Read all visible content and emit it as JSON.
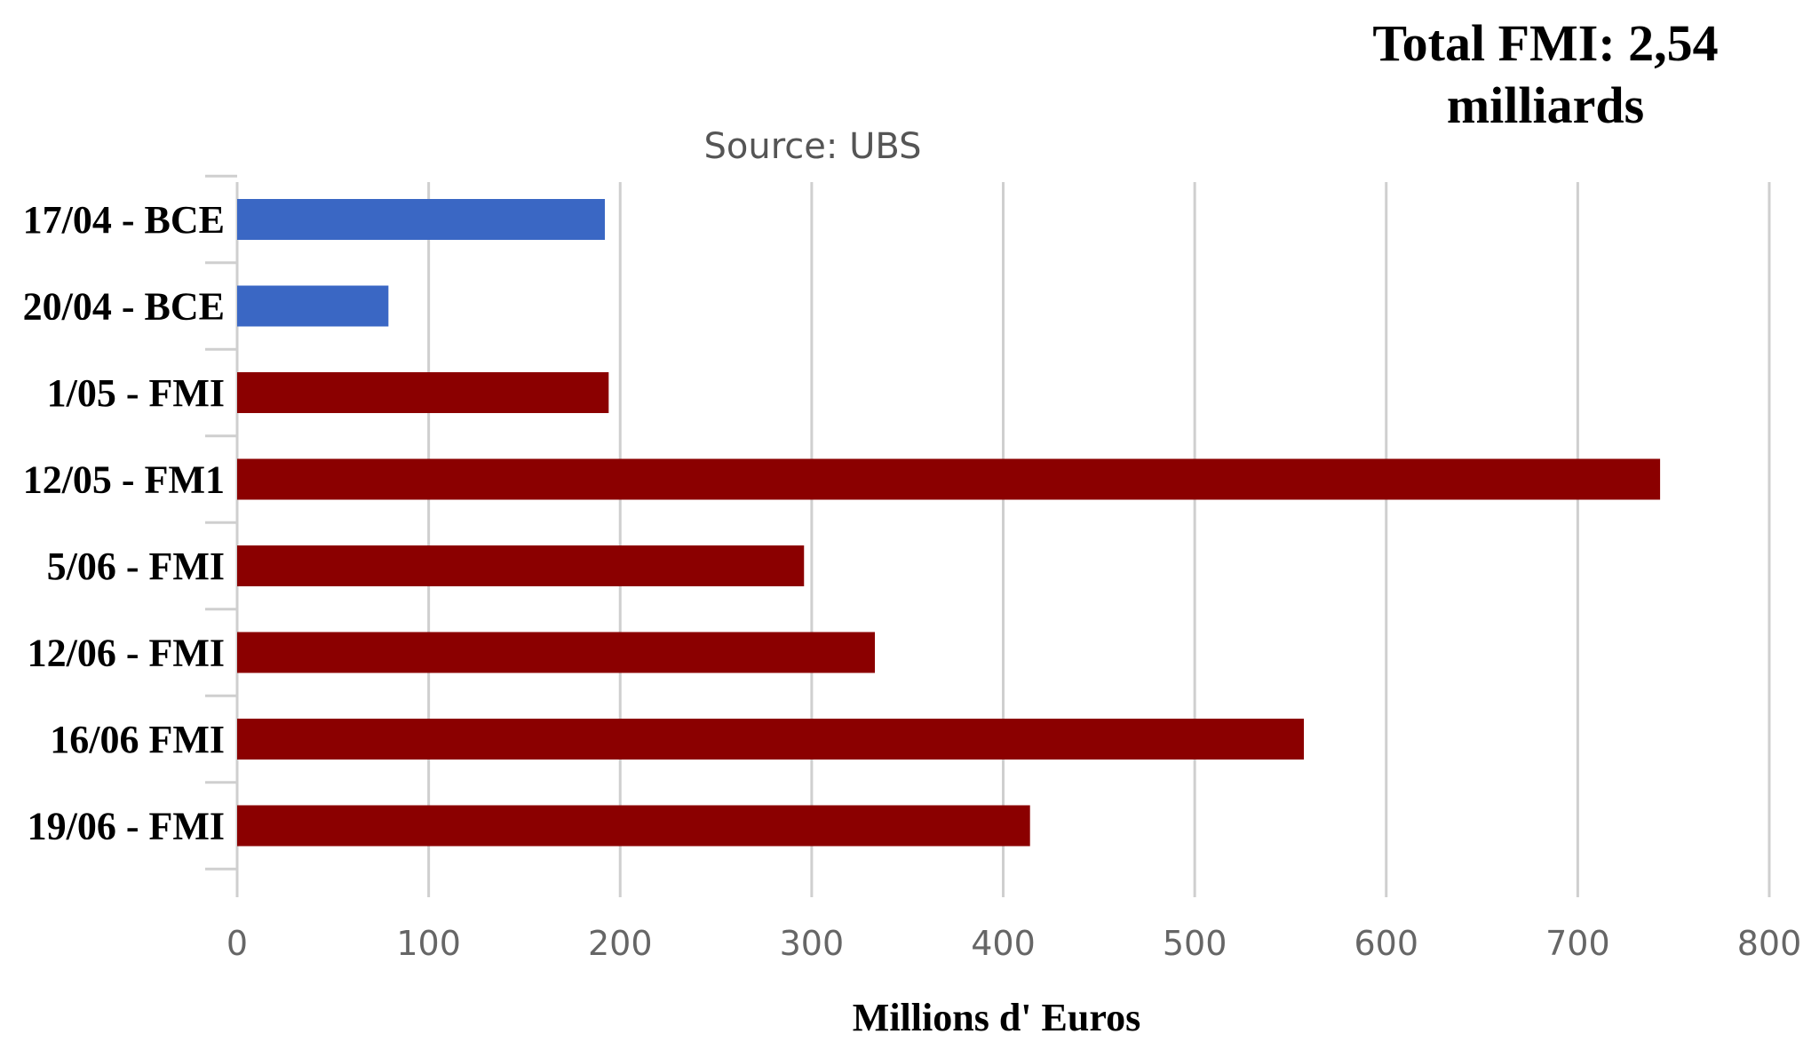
{
  "header": {
    "total_line1": "Total FMI: 2,54",
    "total_line2": "milliards"
  },
  "chart_data": {
    "type": "bar",
    "orientation": "horizontal",
    "subtitle": "Source: UBS",
    "xlabel": "Millions d' Euros",
    "ylabel": "",
    "xlim": [
      0,
      800
    ],
    "ticks": [
      0,
      100,
      200,
      300,
      400,
      500,
      600,
      700,
      800
    ],
    "tick_labels": [
      "0",
      "100",
      "200",
      "300",
      "400",
      "500",
      "600",
      "700",
      "800"
    ],
    "grid": "vertical",
    "categories": [
      "17/04 - BCE",
      "20/04 - BCE",
      "1/05 - FMI",
      "12/05 - FM1",
      "5/06 - FMI",
      "12/06 - FMI",
      "16/06 FMI",
      "19/06 - FMI"
    ],
    "values": [
      192,
      79,
      194,
      743,
      296,
      333,
      557,
      414
    ],
    "colors": [
      "#3a67c4",
      "#3a67c4",
      "#8b0000",
      "#8b0000",
      "#8b0000",
      "#8b0000",
      "#8b0000",
      "#8b0000"
    ]
  }
}
